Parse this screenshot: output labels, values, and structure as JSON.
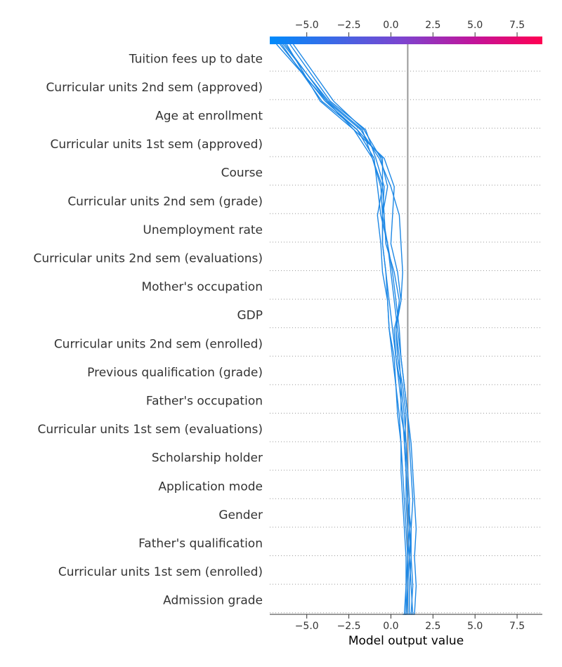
{
  "chart_data": {
    "type": "line",
    "subtype": "shap-decision-plot",
    "xlabel": "Model output value",
    "xlim": [
      -7.2,
      9.0
    ],
    "xticks": [
      -5.0,
      -2.5,
      0.0,
      2.5,
      5.0,
      7.5
    ],
    "xtick_labels": [
      "−5.0",
      "−2.5",
      "0.0",
      "2.5",
      "5.0",
      "7.5"
    ],
    "base_value": 1.0,
    "features": [
      "Tuition fees up to date",
      "Curricular units 2nd sem (approved)",
      "Age at enrollment",
      "Curricular units 1st sem (approved)",
      "Course",
      "Curricular units 2nd sem (grade)",
      "Unemployment rate",
      "Curricular units 2nd sem (evaluations)",
      "Mother's occupation",
      "GDP",
      "Curricular units 2nd sem (enrolled)",
      "Previous qualification (grade)",
      "Father's occupation",
      "Curricular units 1st sem (evaluations)",
      "Scholarship holder",
      "Application mode",
      "Gender",
      "Father's qualification",
      "Curricular units 1st sem (enrolled)",
      "Admission grade"
    ],
    "colorbar": {
      "colors": [
        "#008bfb",
        "#ff0052"
      ],
      "range": [
        -7.2,
        9.0
      ]
    },
    "series_color": "#1e88e5",
    "series": [
      {
        "values": [
          0.8,
          0.9,
          1.0,
          1.0,
          1.1,
          1.0,
          0.9,
          0.9,
          0.6,
          0.6,
          0.3,
          0.2,
          0.6,
          0.7,
          0.6,
          0.5,
          0.0,
          -0.7,
          -1.8,
          -3.8,
          -6.3
        ]
      },
      {
        "values": [
          1.0,
          1.1,
          1.1,
          1.2,
          1.2,
          1.3,
          1.2,
          1.1,
          1.0,
          0.8,
          0.6,
          0.5,
          0.3,
          0.1,
          -0.2,
          -0.6,
          -0.8,
          -1.0,
          -2.0,
          -3.9,
          -6.6
        ]
      },
      {
        "values": [
          1.3,
          1.4,
          1.5,
          1.4,
          1.5,
          1.4,
          1.3,
          1.2,
          1.0,
          0.8,
          0.6,
          0.4,
          0.2,
          0.0,
          -0.2,
          -0.5,
          -0.4,
          -0.9,
          -1.5,
          -3.6,
          -6.0
        ]
      },
      {
        "values": [
          0.7,
          0.8,
          0.9,
          1.0,
          0.9,
          0.8,
          0.7,
          0.6,
          0.4,
          0.3,
          0.1,
          -0.1,
          -0.2,
          -0.3,
          -0.5,
          -0.5,
          -0.2,
          -0.6,
          -1.6,
          -3.4,
          -5.8
        ]
      },
      {
        "values": [
          1.1,
          1.2,
          1.3,
          1.2,
          1.1,
          1.1,
          1.0,
          0.9,
          0.8,
          0.6,
          0.5,
          0.3,
          0.5,
          0.2,
          -0.3,
          -0.4,
          -0.5,
          -0.5,
          -2.0,
          -4.1,
          -6.5
        ]
      },
      {
        "values": [
          0.9,
          1.0,
          1.0,
          1.1,
          1.0,
          0.9,
          0.9,
          0.8,
          0.9,
          0.7,
          0.4,
          0.3,
          0.6,
          0.4,
          0.0,
          0.1,
          0.2,
          -0.4,
          -2.2,
          -3.8,
          -6.8
        ]
      },
      {
        "values": [
          1.2,
          1.3,
          1.2,
          1.1,
          1.2,
          1.0,
          0.9,
          0.8,
          0.7,
          0.5,
          0.3,
          0.1,
          -0.1,
          -0.3,
          -0.5,
          -0.5,
          -0.6,
          -1.1,
          -2.2,
          -4.2,
          -6.2
        ]
      },
      {
        "values": [
          0.8,
          0.9,
          0.9,
          0.9,
          0.8,
          0.7,
          0.6,
          0.6,
          0.5,
          0.3,
          0.2,
          -0.1,
          -0.2,
          -0.5,
          -0.6,
          -0.8,
          -0.5,
          -1.1,
          -1.7,
          -3.7,
          -6.4
        ]
      }
    ]
  }
}
